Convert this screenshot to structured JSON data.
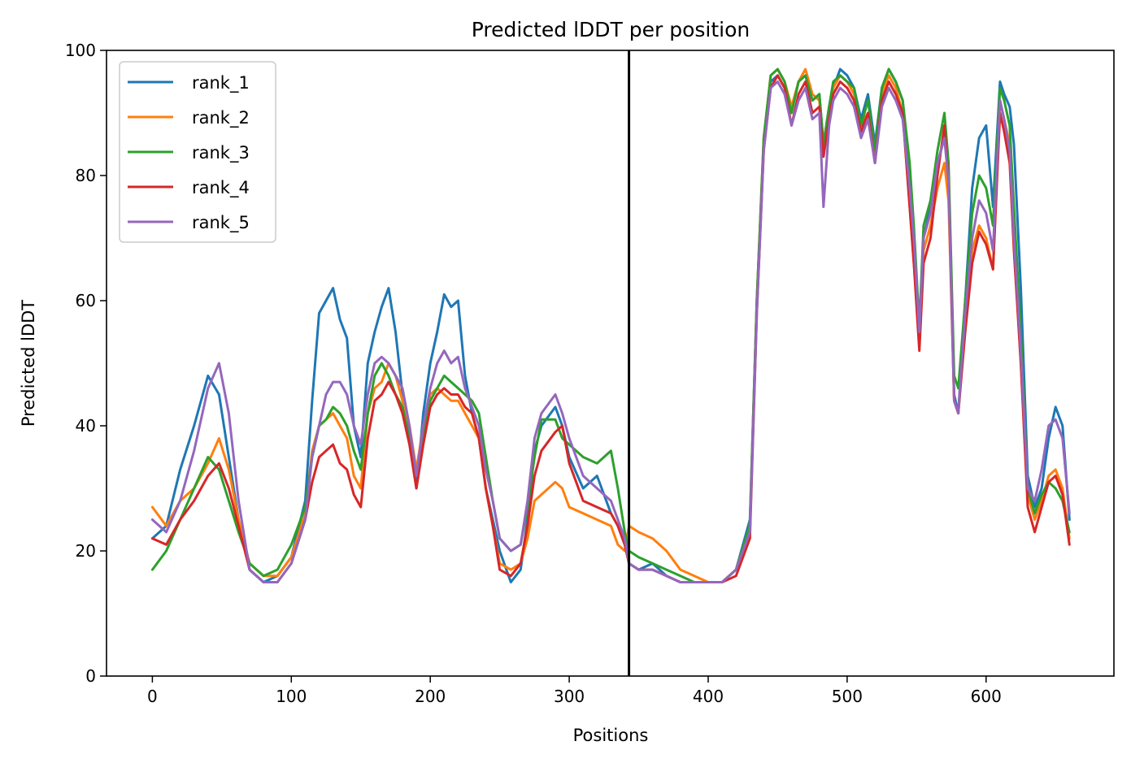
{
  "chart_data": {
    "type": "line",
    "title": "Predicted lDDT per position",
    "xlabel": "Positions",
    "ylabel": "Predicted lDDT",
    "xlim": [
      -33,
      692
    ],
    "ylim": [
      0,
      100
    ],
    "xticks": [
      0,
      100,
      200,
      300,
      400,
      500,
      600
    ],
    "yticks": [
      0,
      20,
      40,
      60,
      80,
      100
    ],
    "grid": false,
    "legend_position": "upper left",
    "vline": {
      "x": 343,
      "color": "#000000"
    },
    "series": [
      {
        "name": "rank_1",
        "color": "#1f77b4",
        "x": [
          0,
          10,
          20,
          30,
          40,
          48,
          55,
          62,
          70,
          80,
          90,
          100,
          110,
          115,
          120,
          125,
          130,
          135,
          140,
          145,
          150,
          155,
          160,
          165,
          170,
          175,
          180,
          185,
          190,
          195,
          200,
          205,
          210,
          215,
          220,
          225,
          230,
          235,
          240,
          245,
          250,
          258,
          265,
          270,
          275,
          280,
          290,
          295,
          300,
          310,
          320,
          330,
          335,
          340,
          343,
          350,
          360,
          370,
          380,
          390,
          400,
          410,
          420,
          430,
          435,
          440,
          445,
          450,
          455,
          460,
          465,
          470,
          475,
          480,
          483,
          487,
          490,
          495,
          500,
          505,
          510,
          515,
          520,
          525,
          530,
          535,
          540,
          545,
          548,
          552,
          555,
          560,
          565,
          570,
          573,
          577,
          580,
          585,
          590,
          595,
          600,
          605,
          610,
          613,
          617,
          620,
          625,
          630,
          635,
          640,
          645,
          650,
          655,
          660
        ],
        "y": [
          22,
          24,
          33,
          40,
          48,
          45,
          35,
          25,
          17,
          15,
          16,
          19,
          28,
          44,
          58,
          60,
          62,
          57,
          54,
          40,
          35,
          50,
          55,
          59,
          62,
          55,
          45,
          38,
          30,
          42,
          50,
          55,
          61,
          59,
          60,
          48,
          42,
          38,
          30,
          25,
          20,
          15,
          17,
          25,
          36,
          40,
          43,
          40,
          35,
          30,
          32,
          26,
          24,
          21,
          18,
          17,
          18,
          16,
          15,
          15,
          15,
          15,
          17,
          25,
          60,
          85,
          95,
          96,
          94,
          90,
          95,
          96,
          92,
          93,
          85,
          91,
          94,
          97,
          96,
          94,
          89,
          93,
          85,
          94,
          97,
          95,
          92,
          80,
          70,
          55,
          70,
          75,
          82,
          86,
          80,
          45,
          42,
          60,
          78,
          86,
          88,
          75,
          95,
          93,
          91,
          85,
          62,
          32,
          27,
          30,
          38,
          43,
          40,
          25
        ]
      },
      {
        "name": "rank_2",
        "color": "#ff7f0e",
        "x": [
          0,
          10,
          20,
          30,
          40,
          48,
          55,
          62,
          70,
          80,
          90,
          100,
          110,
          115,
          120,
          125,
          130,
          135,
          140,
          145,
          150,
          155,
          160,
          165,
          170,
          175,
          180,
          185,
          190,
          195,
          200,
          205,
          210,
          215,
          220,
          225,
          230,
          235,
          240,
          245,
          250,
          258,
          265,
          270,
          275,
          280,
          290,
          295,
          300,
          310,
          320,
          330,
          335,
          340,
          343,
          350,
          360,
          370,
          380,
          390,
          400,
          410,
          420,
          430,
          435,
          440,
          445,
          450,
          455,
          460,
          465,
          470,
          475,
          480,
          483,
          487,
          490,
          495,
          500,
          505,
          510,
          515,
          520,
          525,
          530,
          535,
          540,
          545,
          548,
          552,
          555,
          560,
          565,
          570,
          573,
          577,
          580,
          585,
          590,
          595,
          600,
          605,
          610,
          613,
          617,
          620,
          625,
          630,
          635,
          640,
          645,
          650,
          655,
          660
        ],
        "y": [
          27,
          24,
          28,
          30,
          34,
          38,
          33,
          25,
          18,
          16,
          16,
          19,
          26,
          36,
          40,
          41,
          42,
          40,
          38,
          32,
          30,
          42,
          46,
          47,
          50,
          48,
          44,
          40,
          33,
          40,
          45,
          46,
          45,
          44,
          44,
          42,
          40,
          38,
          30,
          24,
          18,
          17,
          18,
          22,
          28,
          29,
          31,
          30,
          27,
          26,
          25,
          24,
          21,
          20,
          24,
          23,
          22,
          20,
          17,
          16,
          15,
          15,
          17,
          24,
          60,
          86,
          96,
          97,
          95,
          91,
          95,
          97,
          93,
          92,
          85,
          90,
          94,
          96,
          95,
          93,
          88,
          90,
          82,
          93,
          96,
          94,
          90,
          75,
          66,
          55,
          68,
          72,
          78,
          82,
          76,
          44,
          42,
          57,
          68,
          72,
          70,
          65,
          92,
          89,
          85,
          70,
          50,
          29,
          25,
          28,
          32,
          33,
          30,
          22
        ]
      },
      {
        "name": "rank_3",
        "color": "#2ca02c",
        "x": [
          0,
          10,
          20,
          30,
          40,
          48,
          55,
          62,
          70,
          80,
          90,
          100,
          110,
          115,
          120,
          125,
          130,
          135,
          140,
          145,
          150,
          155,
          160,
          165,
          170,
          175,
          180,
          185,
          190,
          195,
          200,
          205,
          210,
          215,
          220,
          225,
          230,
          235,
          240,
          245,
          250,
          258,
          265,
          270,
          275,
          280,
          290,
          295,
          300,
          310,
          320,
          330,
          335,
          340,
          343,
          350,
          360,
          370,
          380,
          390,
          400,
          410,
          420,
          430,
          435,
          440,
          445,
          450,
          455,
          460,
          465,
          470,
          475,
          480,
          483,
          487,
          490,
          495,
          500,
          505,
          510,
          515,
          520,
          525,
          530,
          535,
          540,
          545,
          548,
          552,
          555,
          560,
          565,
          570,
          573,
          577,
          580,
          585,
          590,
          595,
          600,
          605,
          610,
          613,
          617,
          620,
          625,
          630,
          635,
          640,
          645,
          650,
          655,
          660
        ],
        "y": [
          17,
          20,
          25,
          30,
          35,
          33,
          28,
          23,
          18,
          16,
          17,
          21,
          27,
          35,
          40,
          41,
          43,
          42,
          40,
          36,
          33,
          42,
          48,
          50,
          48,
          45,
          43,
          38,
          32,
          38,
          44,
          46,
          48,
          47,
          46,
          45,
          44,
          42,
          35,
          28,
          22,
          20,
          21,
          27,
          35,
          41,
          41,
          38,
          37,
          35,
          34,
          36,
          30,
          23,
          20,
          19,
          18,
          17,
          16,
          15,
          15,
          15,
          17,
          24,
          60,
          86,
          96,
          97,
          95,
          90,
          95,
          96,
          92,
          93,
          85,
          91,
          95,
          96,
          95,
          94,
          88,
          92,
          84,
          94,
          97,
          95,
          92,
          82,
          72,
          56,
          72,
          76,
          84,
          90,
          82,
          48,
          46,
          60,
          74,
          80,
          78,
          72,
          94,
          92,
          88,
          75,
          55,
          30,
          26,
          29,
          31,
          30,
          28,
          23
        ]
      },
      {
        "name": "rank_4",
        "color": "#d62728",
        "x": [
          0,
          10,
          20,
          30,
          40,
          48,
          55,
          62,
          70,
          80,
          90,
          100,
          110,
          115,
          120,
          125,
          130,
          135,
          140,
          145,
          150,
          155,
          160,
          165,
          170,
          175,
          180,
          185,
          190,
          195,
          200,
          205,
          210,
          215,
          220,
          225,
          230,
          235,
          240,
          245,
          250,
          258,
          265,
          270,
          275,
          280,
          290,
          295,
          300,
          310,
          320,
          330,
          335,
          340,
          343,
          350,
          360,
          370,
          380,
          390,
          400,
          410,
          420,
          430,
          435,
          440,
          445,
          450,
          455,
          460,
          465,
          470,
          475,
          480,
          483,
          487,
          490,
          495,
          500,
          505,
          510,
          515,
          520,
          525,
          530,
          535,
          540,
          545,
          548,
          552,
          555,
          560,
          565,
          570,
          573,
          577,
          580,
          585,
          590,
          595,
          600,
          605,
          610,
          613,
          617,
          620,
          625,
          630,
          635,
          640,
          645,
          650,
          655,
          660
        ],
        "y": [
          22,
          21,
          25,
          28,
          32,
          34,
          30,
          24,
          17,
          15,
          15,
          18,
          25,
          31,
          35,
          36,
          37,
          34,
          33,
          29,
          27,
          38,
          44,
          45,
          47,
          45,
          42,
          37,
          30,
          37,
          43,
          45,
          46,
          45,
          45,
          43,
          42,
          38,
          30,
          24,
          17,
          16,
          18,
          24,
          32,
          36,
          39,
          40,
          34,
          28,
          27,
          26,
          24,
          21,
          18,
          17,
          17,
          16,
          15,
          15,
          15,
          15,
          16,
          22,
          58,
          84,
          94,
          96,
          94,
          88,
          93,
          95,
          90,
          91,
          83,
          89,
          93,
          95,
          94,
          92,
          87,
          90,
          82,
          92,
          95,
          93,
          90,
          75,
          66,
          52,
          66,
          70,
          80,
          88,
          79,
          44,
          42,
          55,
          66,
          71,
          69,
          65,
          90,
          87,
          82,
          68,
          50,
          27,
          23,
          27,
          31,
          32,
          29,
          21
        ]
      },
      {
        "name": "rank_5",
        "color": "#9467bd",
        "x": [
          0,
          10,
          20,
          30,
          40,
          48,
          55,
          62,
          70,
          80,
          90,
          100,
          110,
          115,
          120,
          125,
          130,
          135,
          140,
          145,
          150,
          155,
          160,
          165,
          170,
          175,
          180,
          185,
          190,
          195,
          200,
          205,
          210,
          215,
          220,
          225,
          230,
          235,
          240,
          245,
          250,
          258,
          265,
          270,
          275,
          280,
          290,
          295,
          300,
          310,
          320,
          330,
          335,
          340,
          343,
          350,
          360,
          370,
          380,
          390,
          400,
          410,
          420,
          430,
          435,
          440,
          445,
          450,
          455,
          460,
          465,
          470,
          475,
          480,
          483,
          487,
          490,
          495,
          500,
          505,
          510,
          515,
          520,
          525,
          530,
          535,
          540,
          545,
          548,
          552,
          555,
          560,
          565,
          570,
          573,
          577,
          580,
          585,
          590,
          595,
          600,
          605,
          610,
          613,
          617,
          620,
          625,
          630,
          635,
          640,
          645,
          650,
          655,
          660
        ],
        "y": [
          25,
          23,
          28,
          36,
          46,
          50,
          42,
          28,
          17,
          15,
          15,
          18,
          25,
          35,
          40,
          45,
          47,
          47,
          45,
          40,
          37,
          45,
          50,
          51,
          50,
          48,
          46,
          40,
          32,
          40,
          46,
          50,
          52,
          50,
          51,
          46,
          43,
          40,
          33,
          28,
          22,
          20,
          21,
          28,
          38,
          42,
          45,
          42,
          38,
          32,
          30,
          28,
          25,
          22,
          18,
          17,
          17,
          16,
          15,
          15,
          15,
          15,
          17,
          23,
          58,
          84,
          94,
          95,
          93,
          88,
          92,
          94,
          89,
          90,
          75,
          88,
          92,
          94,
          93,
          91,
          86,
          89,
          82,
          91,
          94,
          92,
          89,
          78,
          70,
          55,
          70,
          74,
          82,
          86,
          79,
          44,
          42,
          58,
          70,
          76,
          74,
          68,
          92,
          89,
          84,
          70,
          52,
          30,
          28,
          33,
          40,
          41,
          38,
          26
        ]
      }
    ]
  }
}
